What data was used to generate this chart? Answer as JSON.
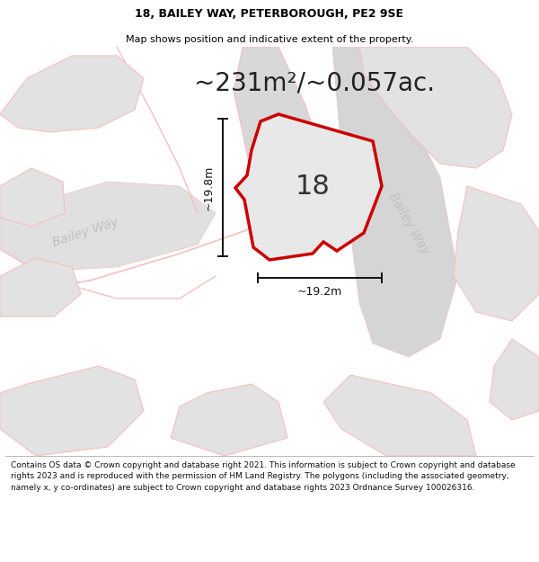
{
  "title_line1": "18, BAILEY WAY, PETERBOROUGH, PE2 9SE",
  "title_line2": "Map shows position and indicative extent of the property.",
  "area_label": "~231m²/~0.057ac.",
  "number_label": "18",
  "dim_h": "~19.8m",
  "dim_w": "~19.2m",
  "street_label_right": "Bailey Way",
  "street_label_left": "Bailey Way",
  "footer": "Contains OS data © Crown copyright and database right 2021. This information is subject to Crown copyright and database rights 2023 and is reproduced with the permission of HM Land Registry. The polygons (including the associated geometry, namely x, y co-ordinates) are subject to Crown copyright and database rights 2023 Ordnance Survey 100026316.",
  "map_bg": "#f0f0f0",
  "building_fill": "#e2e2e2",
  "building_edge": "#f5c0c0",
  "road_fill": "#d8d8d8",
  "road_edge": "#f5c0c0",
  "property_fill": "#e8e8e8",
  "property_edge": "#cc0000",
  "dim_color": "#111111",
  "street_color": "#c0c0c0",
  "white": "#ffffff",
  "title_fontsize": 9,
  "subtitle_fontsize": 8,
  "area_fontsize": 20,
  "number_fontsize": 22,
  "dim_fontsize": 9,
  "street_fontsize": 10,
  "footer_fontsize": 6.5
}
